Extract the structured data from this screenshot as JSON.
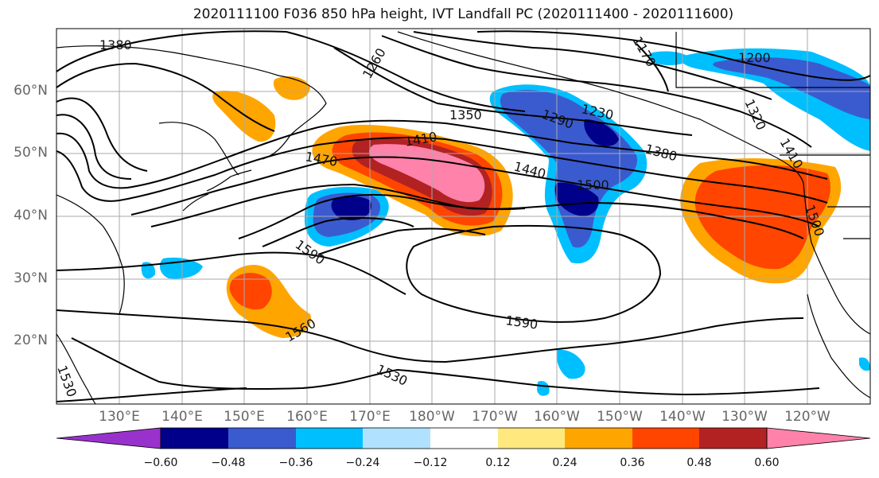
{
  "title": "2020111100 F036 850 hPa height, IVT Landfall PC (2020111400 - 2020111600)",
  "map": {
    "projection": "plate-carree",
    "lon_range_east_deg": [
      120,
      250
    ],
    "lat_range_deg": [
      10,
      70
    ],
    "gridlines": true,
    "coastlines": true,
    "lat_labels": [
      "60°N",
      "50°N",
      "40°N",
      "30°N",
      "20°N"
    ],
    "lon_labels": [
      "130°E",
      "140°E",
      "150°E",
      "160°E",
      "170°E",
      "180°W",
      "170°W",
      "160°W",
      "150°W",
      "140°W",
      "130°W",
      "120°W"
    ],
    "contour_labels": [
      "1380",
      "1260",
      "1170",
      "1200",
      "1350",
      "1410",
      "1470",
      "1440",
      "1380",
      "1500",
      "1590",
      "1590",
      "1560",
      "1530",
      "1530",
      "1230",
      "1290",
      "1500",
      "1320",
      "1410"
    ]
  },
  "colorbar": {
    "tick_labels": [
      "−0.60",
      "−0.48",
      "−0.36",
      "−0.24",
      "−0.12",
      "0.12",
      "0.24",
      "0.36",
      "0.48",
      "0.60"
    ],
    "colors": [
      "#9932cc",
      "#00008b",
      "#3a5bcf",
      "#00bfff",
      "#b0e2ff",
      "#ffffff",
      "#ffe97f",
      "#ffa500",
      "#ff4500",
      "#b22222",
      "#ff82ab"
    ],
    "extend": "both"
  },
  "chart_data": {
    "type": "heatmap",
    "title": "2020111100 F036 850 hPa height, IVT Landfall PC (2020111400 - 2020111600)",
    "variable_contours": "850 hPa height",
    "variable_fill": "IVT Landfall PC",
    "levels": [
      -0.6,
      -0.48,
      -0.36,
      -0.24,
      -0.12,
      0.12,
      0.24,
      0.36,
      0.48,
      0.6
    ],
    "contour_values_labeled": [
      1170,
      1200,
      1230,
      1260,
      1290,
      1320,
      1350,
      1380,
      1410,
      1440,
      1470,
      1500,
      1530,
      1560,
      1590
    ]
  }
}
